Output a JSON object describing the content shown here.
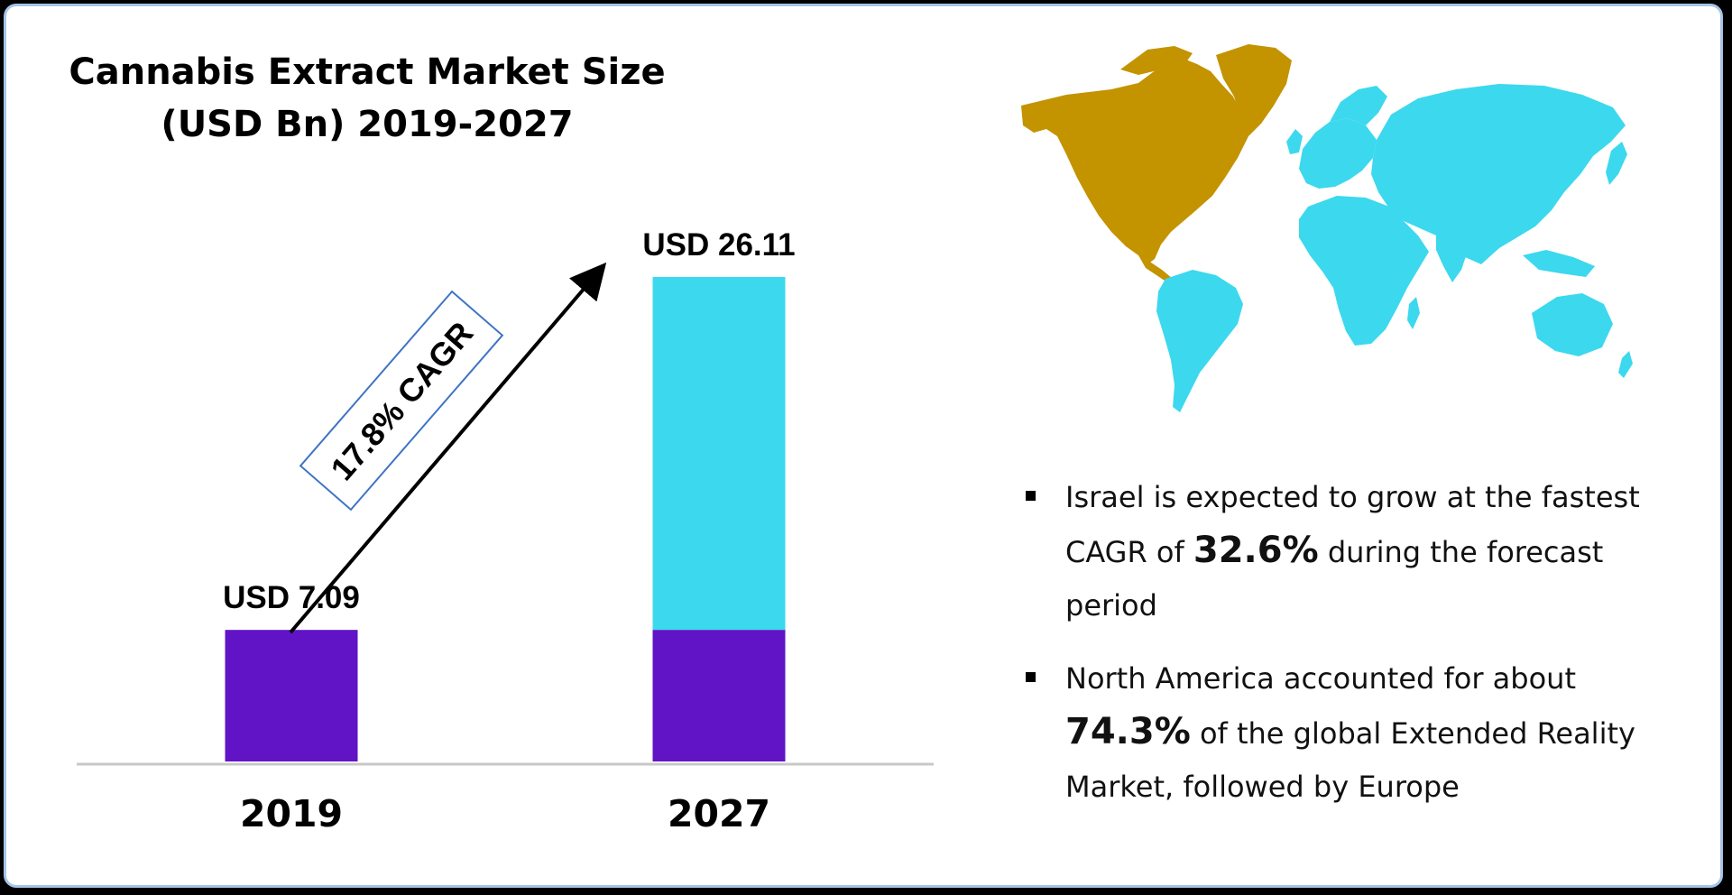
{
  "title": {
    "line1": "Cannabis Extract Market Size",
    "line2": "(USD Bn) 2019-2027"
  },
  "chart_data": {
    "type": "bar",
    "categories": [
      "2019",
      "2027"
    ],
    "values": [
      7.09,
      26.11
    ],
    "value_labels": [
      "USD 7.09",
      "USD 26.11"
    ],
    "ylim": [
      0,
      26.11
    ],
    "grid": false,
    "base_color": "#6014c6",
    "growth_color": "#3cd8ee",
    "cagr_label": "17.8% CAGR"
  },
  "map": {
    "highlight_region": "North America",
    "highlight_color": "#c39300",
    "other_color": "#3cd8ee"
  },
  "insights": [
    {
      "before": "Israel is expected to grow at the fastest CAGR of ",
      "highlight": "32.6%",
      "after": " during the forecast period"
    },
    {
      "before": "North America accounted for about ",
      "highlight": "74.3%",
      "after": " of the global Extended Reality Market, followed by Europe"
    }
  ]
}
